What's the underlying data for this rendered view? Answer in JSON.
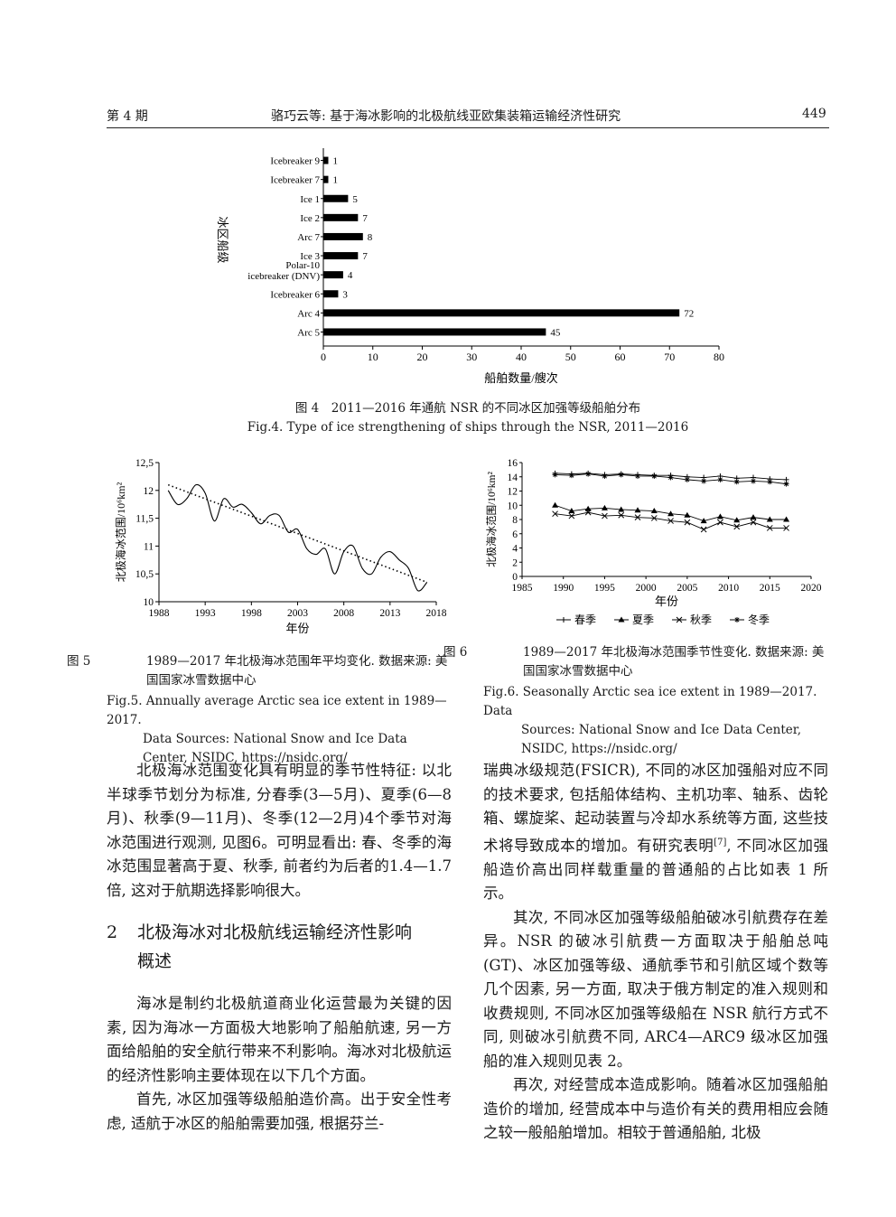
{
  "header": {
    "issue": "第 4 期",
    "title": "骆巧云等: 基于海冰影响的北极航线亚欧集装箱运输经济性研究",
    "page": "449"
  },
  "fig4": {
    "caption_cn": "图 4　2011—2016 年通航 NSR 的不同冰区加强等级船舶分布",
    "caption_en": "Fig.4. Type of ice strengthening of ships through the NSR, 2011—2016",
    "chart_data": {
      "type": "bar",
      "orientation": "horizontal",
      "categories": [
        "Icebreaker 9",
        "Icebreaker 7",
        "Ice 1",
        "Ice 2",
        "Arc 7",
        "Ice 3",
        "Polar-10 icebreaker (DNV)",
        "Icebreaker 6",
        "Arc 4",
        "Arc 5"
      ],
      "values": [
        1,
        1,
        5,
        7,
        8,
        7,
        4,
        3,
        72,
        45
      ],
      "ylabel": "冰区船级",
      "xlabel": "船舶数量/艘次",
      "xlim": [
        0,
        80
      ],
      "xticks": [
        0,
        10,
        20,
        30,
        40,
        50,
        60,
        70,
        80
      ],
      "grid": false
    }
  },
  "fig5": {
    "caption_num": "图 5",
    "caption_cn": "1989—2017 年北极海冰范围年平均变化. 数据来源: 美国国家冰雪数据中心",
    "caption_en_1": "Fig.5. Annually average Arctic sea ice extent in 1989—2017.",
    "caption_en_2": "Data Sources: National Snow and Ice Data Center, NSIDC, https://nsidc.org/",
    "chart_data": {
      "type": "line",
      "xlabel": "年份",
      "ylabel": "北极海冰范围/10⁶km²",
      "xlim": [
        1988,
        2018
      ],
      "ylim": [
        10,
        12.5
      ],
      "xticks": [
        1988,
        1993,
        1998,
        2003,
        2008,
        2013,
        2018
      ],
      "yticks": [
        "10",
        "10,5",
        "11",
        "11,5",
        "12",
        "12,5"
      ],
      "series": [
        {
          "style": "solid",
          "x": [
            1989,
            1990,
            1991,
            1992,
            1993,
            1994,
            1995,
            1996,
            1997,
            1998,
            1999,
            2000,
            2001,
            2002,
            2003,
            2004,
            2005,
            2006,
            2007,
            2008,
            2009,
            2010,
            2011,
            2012,
            2013,
            2014,
            2015,
            2016,
            2017
          ],
          "y": [
            12.0,
            11.75,
            11.85,
            12.1,
            11.95,
            11.45,
            11.85,
            11.7,
            11.75,
            11.6,
            11.4,
            11.55,
            11.55,
            11.25,
            11.3,
            10.95,
            10.85,
            10.95,
            10.5,
            10.9,
            11.0,
            10.6,
            10.5,
            10.8,
            10.9,
            10.75,
            10.6,
            10.2,
            10.35
          ]
        },
        {
          "style": "dotted",
          "x": [
            1989,
            2017
          ],
          "y": [
            12.1,
            10.35
          ]
        }
      ]
    }
  },
  "fig6": {
    "caption_num": "图 6",
    "caption_cn": "1989—2017 年北极海冰范围季节性变化. 数据来源: 美国国家冰雪数据中心",
    "caption_en_1": "Fig.6. Seasonally Arctic sea ice extent in 1989—2017. Data",
    "caption_en_2": "Sources: National Snow and Ice Data Center, NSIDC, https://nsidc.org/",
    "chart_data": {
      "type": "line",
      "xlabel": "年份",
      "ylabel": "北极海冰范围/10⁶km²",
      "xlim": [
        1985,
        2020
      ],
      "ylim": [
        0,
        16
      ],
      "xticks": [
        1985,
        1990,
        1995,
        2000,
        2005,
        2010,
        2015,
        2020
      ],
      "yticks": [
        0,
        2,
        4,
        6,
        8,
        10,
        12,
        14,
        16
      ],
      "legend_position": "bottom",
      "x": [
        1989,
        1991,
        1993,
        1995,
        1997,
        1999,
        2001,
        2003,
        2005,
        2007,
        2009,
        2011,
        2013,
        2015,
        2017
      ],
      "series": [
        {
          "name": "春季",
          "marker": "plus",
          "values": [
            14.5,
            14.4,
            14.5,
            14.3,
            14.4,
            14.3,
            14.2,
            14.2,
            14.0,
            13.9,
            14.1,
            13.8,
            13.9,
            13.7,
            13.6
          ]
        },
        {
          "name": "夏季",
          "marker": "triangle",
          "values": [
            10.0,
            9.2,
            9.5,
            9.6,
            9.4,
            9.3,
            9.2,
            8.8,
            8.6,
            7.8,
            8.4,
            7.9,
            8.3,
            8.0,
            8.0
          ]
        },
        {
          "name": "秋季",
          "marker": "x",
          "values": [
            8.8,
            8.5,
            9.0,
            8.5,
            8.6,
            8.3,
            8.2,
            7.8,
            7.6,
            6.6,
            7.6,
            7.0,
            7.6,
            6.8,
            6.8
          ]
        },
        {
          "name": "冬季",
          "marker": "star",
          "values": [
            14.3,
            14.2,
            14.4,
            14.1,
            14.3,
            14.1,
            14.1,
            13.9,
            13.6,
            13.4,
            13.6,
            13.3,
            13.4,
            13.3,
            13.0
          ]
        }
      ]
    }
  },
  "left_col": {
    "p1": "北极海冰范围变化具有明显的季节性特征: 以北半球季节划分为标准, 分春季(3—5月)、夏季(6—8月)、秋季(9—11月)、冬季(12—2月)4个季节对海冰范围进行观测, 见图6。可明显看出: 春、冬季的海冰范围显著高于夏、秋季, 前者约为后者的1.4—1.7倍, 这对于航期选择影响很大。",
    "section_num": "2",
    "section_title_1": "北极海冰对北极航线运输经济性影响",
    "section_title_2": "概述",
    "p2": "海冰是制约北极航道商业化运营最为关键的因素, 因为海冰一方面极大地影响了船舶航速, 另一方面给船舶的安全航行带来不利影响。海冰对北极航运的经济性影响主要体现在以下几个方面。",
    "p3": "首先, 冰区加强等级船舶造价高。出于安全性考虑, 适航于冰区的船舶需要加强, 根据芬兰-"
  },
  "right_col": {
    "p1a": "瑞典冰级规范(FSICR), 不同的冰区加强船对应不同的技术要求, 包括船体结构、主机功率、轴系、齿轮箱、螺旋桨、起动装置与冷却水系统等方面, 这些技术将导致成本的增加。有研究表明",
    "ref": "[7]",
    "p1b": ", 不同冰区加强船造价高出同样载重量的普通船的占比如表 1 所示。",
    "p2": "其次, 不同冰区加强等级船舶破冰引航费存在差异。NSR 的破冰引航费一方面取决于船舶总吨(GT)、冰区加强等级、通航季节和引航区域个数等几个因素, 另一方面, 取决于俄方制定的准入规则和收费规则, 不同冰区加强等级船在 NSR 航行方式不同, 则破冰引航费不同, ARC4—ARC9 级冰区加强船的准入规则见表 2。",
    "p3": "再次, 对经营成本造成影响。随着冰区加强船舶造价的增加, 经营成本中与造价有关的费用相应会随之较一般船舶增加。相较于普通船舶, 北极"
  }
}
